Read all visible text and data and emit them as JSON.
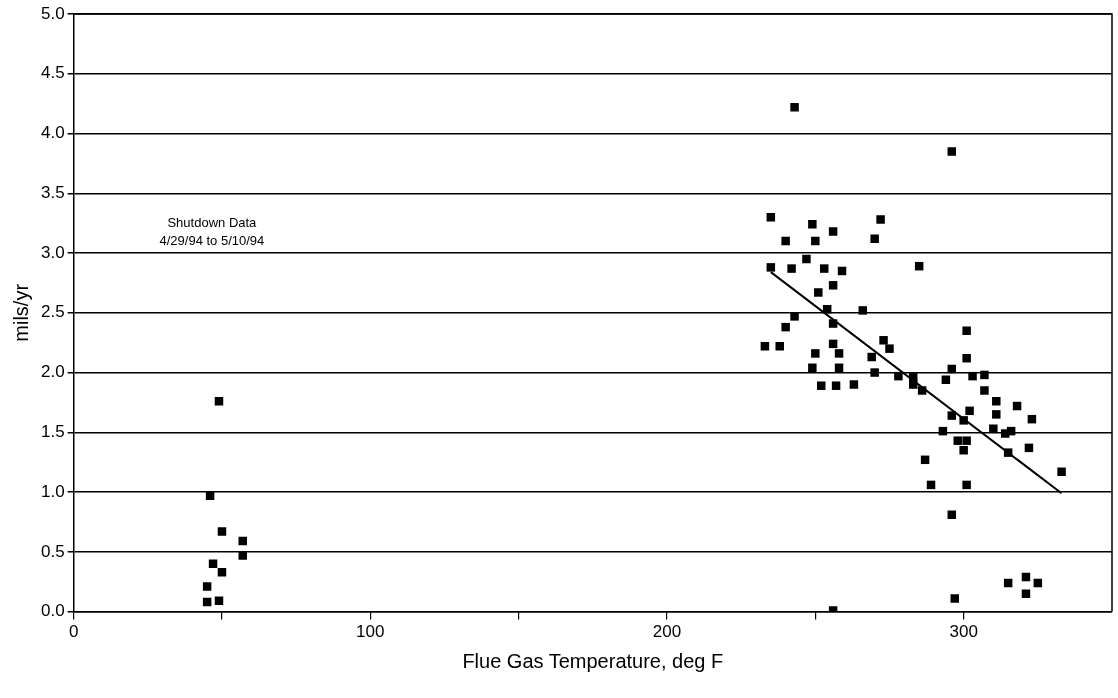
{
  "chart_data": {
    "type": "scatter",
    "xlabel": "Flue Gas Temperature, deg F",
    "ylabel": "mils/yr",
    "annotations": [
      "Shutdown Data",
      "4/29/94 to 5/10/94"
    ],
    "xlim": [
      0,
      350
    ],
    "xticks": [
      0,
      {
        "value": 50,
        "label": null
      },
      100,
      {
        "value": 150,
        "label": null
      },
      200,
      {
        "value": 250,
        "label": null
      },
      300
    ],
    "ylim": [
      0,
      5
    ],
    "yticks": [
      {
        "value": 0,
        "label": "0.0"
      },
      {
        "value": 0.5,
        "label": "0.5"
      },
      {
        "value": 1,
        "label": "1.0"
      },
      {
        "value": 1.5,
        "label": "1.5"
      },
      {
        "value": 2,
        "label": "2.0"
      },
      {
        "value": 2.5,
        "label": "2.5"
      },
      {
        "value": 3,
        "label": "3.0"
      },
      {
        "value": 3.5,
        "label": "3.5"
      },
      {
        "value": 4,
        "label": "4.0"
      },
      {
        "value": 4.5,
        "label": "4.5"
      },
      {
        "value": 5,
        "label": "5.0"
      }
    ],
    "grid": "y",
    "marker": "square",
    "series": [
      {
        "color": "#000000",
        "x": [
          49,
          46,
          50,
          57,
          57,
          47,
          50,
          45,
          45,
          49,
          243,
          296,
          235,
          249,
          256,
          240,
          250,
          272,
          270,
          247,
          235,
          242,
          253,
          259,
          285,
          256,
          251,
          254,
          266,
          243,
          240,
          256,
          233,
          238,
          250,
          256,
          258,
          273,
          275,
          269,
          301,
          301,
          249,
          258,
          270,
          252,
          257,
          263,
          278,
          283,
          283,
          286,
          296,
          294,
          303,
          307,
          307,
          311,
          318,
          311,
          323,
          296,
          302,
          300,
          293,
          310,
          316,
          314,
          298,
          301,
          300,
          315,
          322,
          287,
          333,
          289,
          301,
          296,
          315,
          321,
          325,
          321,
          297,
          256
        ],
        "values": [
          1.76,
          0.97,
          0.67,
          0.59,
          0.47,
          0.4,
          0.33,
          0.21,
          0.08,
          0.09,
          4.22,
          3.85,
          3.3,
          3.24,
          3.18,
          3.1,
          3.1,
          3.28,
          3.12,
          2.95,
          2.88,
          2.87,
          2.87,
          2.85,
          2.89,
          2.73,
          2.67,
          2.53,
          2.52,
          2.47,
          2.38,
          2.41,
          2.22,
          2.22,
          2.16,
          2.24,
          2.16,
          2.27,
          2.2,
          2.13,
          2.35,
          2.12,
          2.04,
          2.04,
          2.0,
          1.89,
          1.89,
          1.9,
          1.97,
          1.96,
          1.9,
          1.85,
          2.03,
          1.94,
          1.97,
          1.98,
          1.85,
          1.76,
          1.72,
          1.65,
          1.61,
          1.64,
          1.68,
          1.6,
          1.51,
          1.53,
          1.51,
          1.49,
          1.43,
          1.43,
          1.35,
          1.33,
          1.37,
          1.27,
          1.17,
          1.06,
          1.06,
          0.81,
          0.24,
          0.29,
          0.24,
          0.15,
          0.11,
          0.01
        ]
      },
      {
        "type": "line",
        "marker": "none",
        "color": "#000000",
        "x": [
          235,
          333
        ],
        "values": [
          2.84,
          0.99
        ]
      }
    ]
  }
}
